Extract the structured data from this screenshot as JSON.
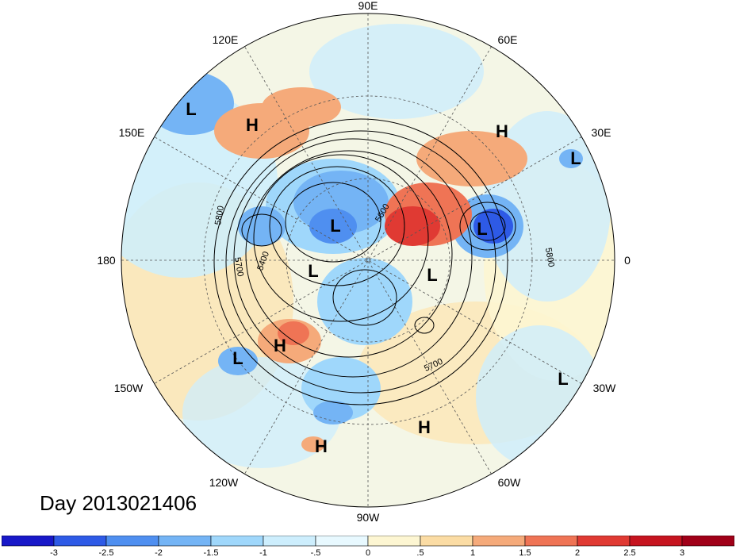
{
  "title": "Day 2013021406",
  "longitude_labels": [
    "90E",
    "60E",
    "30E",
    "0",
    "30W",
    "60W",
    "90W",
    "120W",
    "150W",
    "180",
    "150E",
    "120E"
  ],
  "pressure_systems": [
    {
      "type": "L",
      "label": "L"
    },
    {
      "type": "H",
      "label": "H"
    },
    {
      "type": "H",
      "label": "H"
    },
    {
      "type": "L",
      "label": "L"
    },
    {
      "type": "L",
      "label": "L"
    },
    {
      "type": "L",
      "label": "L"
    },
    {
      "type": "L",
      "label": "L"
    },
    {
      "type": "L",
      "label": "L"
    },
    {
      "type": "L",
      "label": "L"
    },
    {
      "type": "H",
      "label": "H"
    },
    {
      "type": "L",
      "label": "L"
    },
    {
      "type": "L",
      "label": "L"
    },
    {
      "type": "H",
      "label": "H"
    },
    {
      "type": "H",
      "label": "H"
    }
  ],
  "contour_labels": [
    "5800",
    "5700",
    "5400",
    "5600",
    "5800",
    "5700"
  ],
  "colorbar": {
    "tick_labels": [
      "-3",
      "-2.5",
      "-2",
      "-1.5",
      "-1",
      "-.5",
      "0",
      ".5",
      "1",
      "1.5",
      "2",
      "2.5",
      "3"
    ],
    "colors": [
      "#1818c8",
      "#2e5ae6",
      "#4f8ff0",
      "#74b4f5",
      "#9fd7fb",
      "#cdeefd",
      "#e8f9ff",
      "#fdf6d2",
      "#fbdca4",
      "#f5aa7a",
      "#ef7455",
      "#e03a33",
      "#c6141f",
      "#a00018"
    ]
  },
  "map_colors": {
    "ocean_cool": "#cdeefd",
    "warm": "#fbdca4",
    "hot": "#ef7455",
    "cold": "#4f8ff0"
  }
}
